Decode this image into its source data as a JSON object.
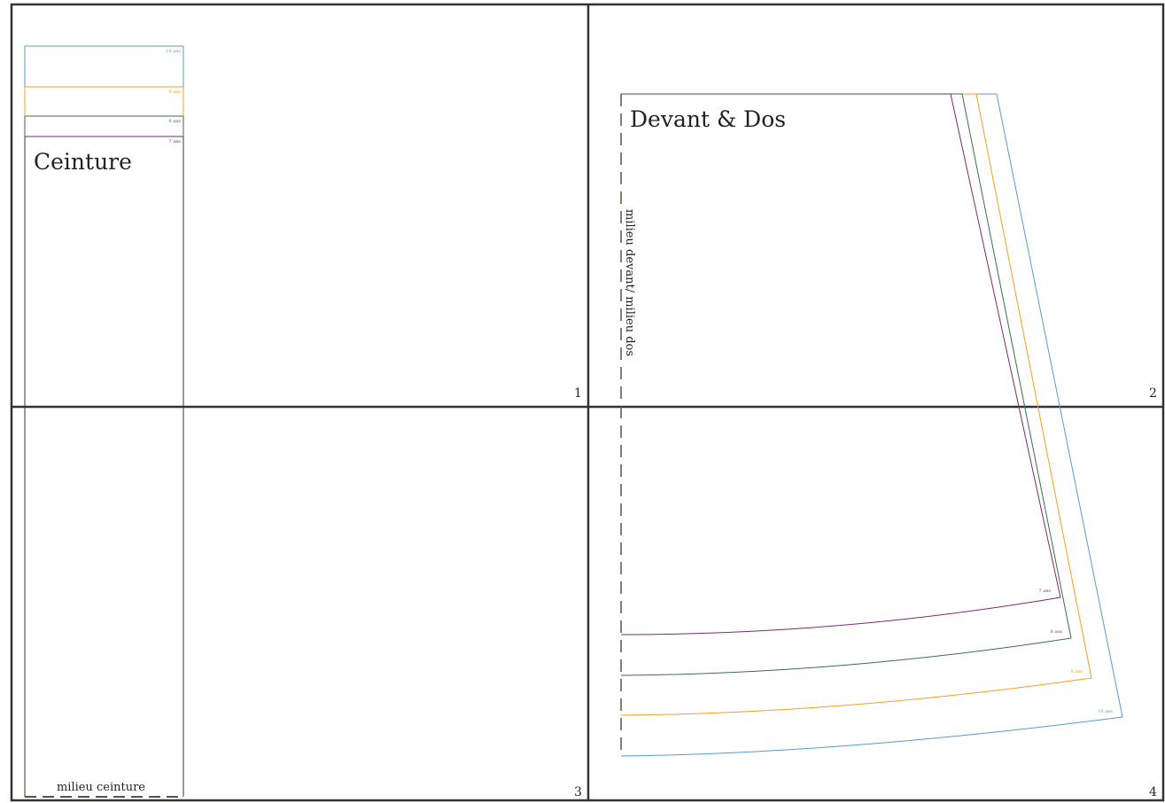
{
  "sheet": {
    "page_numbers": [
      "1",
      "2",
      "3",
      "4"
    ]
  },
  "pieces": {
    "ceinture": {
      "title": "Ceinture",
      "fold_label": "milieu ceinture",
      "size_labels": [
        "10 ans",
        "9 ans",
        "8 ans",
        "7 ans"
      ]
    },
    "devant_dos": {
      "title": "Devant & Dos",
      "fold_label": "milieu devant/ milieu dos",
      "size_labels": [
        "7 ans",
        "8 ans",
        "9 ans",
        "10 ans"
      ]
    }
  },
  "sizes": [
    {
      "name": "7 ans",
      "color": "#7a2a6e"
    },
    {
      "name": "8 ans",
      "color": "#3f6b4a"
    },
    {
      "name": "9 ans",
      "color": "#f0a020"
    },
    {
      "name": "10 ans",
      "color": "#5a9ac8"
    }
  ],
  "colors": {
    "grid": "#333333",
    "outline": "#3a3a2a",
    "fold_line": "#555544"
  }
}
